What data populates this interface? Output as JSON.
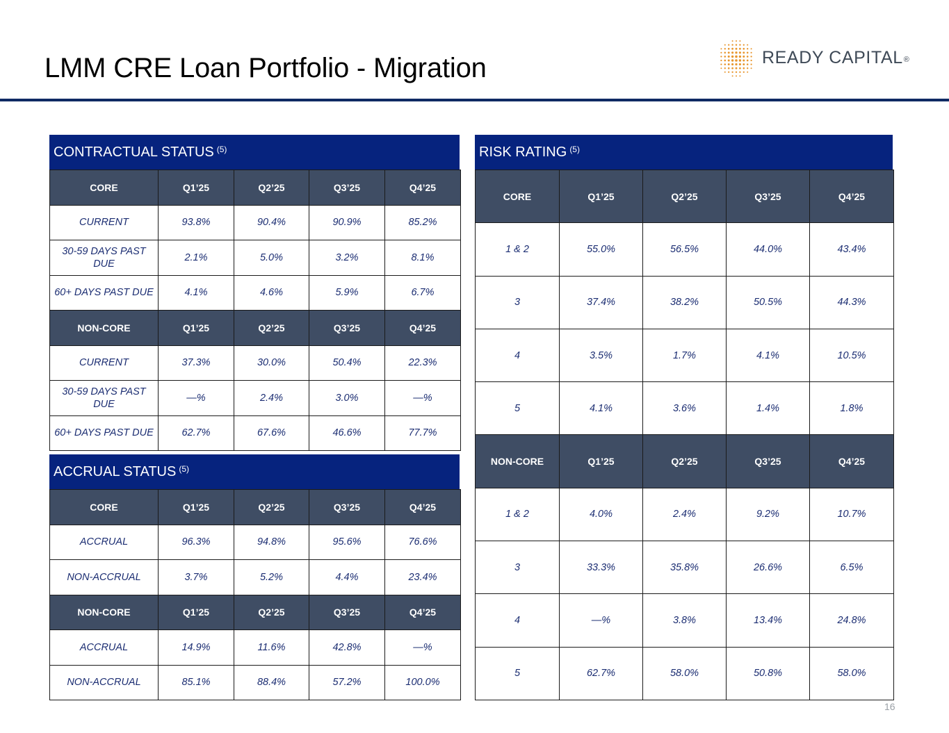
{
  "slide": {
    "title": "LMM CRE Loan Portfolio - Migration",
    "page_number": "16",
    "brand": {
      "logo_text": "READY CAPITAL",
      "logo_mark": "ready-capital-dot-logo-icon",
      "accent": "#e8962e",
      "rule_color": "#0f2a63",
      "header_color": "#06237e",
      "subheader_color": "#3f4d64"
    }
  },
  "contractual": {
    "title": "CONTRACTUAL STATUS",
    "note": "(5)",
    "core": {
      "header": [
        "CORE",
        "Q1’25",
        "Q2’25",
        "Q3’25",
        "Q4’25"
      ],
      "rows": [
        [
          "CURRENT",
          "93.8%",
          "90.4%",
          "90.9%",
          "85.2%"
        ],
        [
          "30-59 DAYS PAST DUE",
          "2.1%",
          "5.0%",
          "3.2%",
          "8.1%"
        ],
        [
          "60+ DAYS PAST DUE",
          "4.1%",
          "4.6%",
          "5.9%",
          "6.7%"
        ]
      ]
    },
    "noncore": {
      "header": [
        "NON-CORE",
        "Q1’25",
        "Q2’25",
        "Q3’25",
        "Q4’25"
      ],
      "rows": [
        [
          "CURRENT",
          "37.3%",
          "30.0%",
          "50.4%",
          "22.3%"
        ],
        [
          "30-59 DAYS PAST DUE",
          "—%",
          "2.4%",
          "3.0%",
          "—%"
        ],
        [
          "60+ DAYS PAST DUE",
          "62.7%",
          "67.6%",
          "46.6%",
          "77.7%"
        ]
      ]
    }
  },
  "accrual": {
    "title": "ACCRUAL STATUS",
    "note": "(5)",
    "core": {
      "header": [
        "CORE",
        "Q1’25",
        "Q2’25",
        "Q3’25",
        "Q4’25"
      ],
      "rows": [
        [
          "ACCRUAL",
          "96.3%",
          "94.8%",
          "95.6%",
          "76.6%"
        ],
        [
          "NON-ACCRUAL",
          "3.7%",
          "5.2%",
          "4.4%",
          "23.4%"
        ]
      ]
    },
    "noncore": {
      "header": [
        "NON-CORE",
        "Q1’25",
        "Q2’25",
        "Q3’25",
        "Q4’25"
      ],
      "rows": [
        [
          "ACCRUAL",
          "14.9%",
          "11.6%",
          "42.8%",
          "—%"
        ],
        [
          "NON-ACCRUAL",
          "85.1%",
          "88.4%",
          "57.2%",
          "100.0%"
        ]
      ]
    }
  },
  "risk": {
    "title": "RISK RATING",
    "note": "(5)",
    "core": {
      "header": [
        "CORE",
        "Q1’25",
        "Q2’25",
        "Q3’25",
        "Q4’25"
      ],
      "rows": [
        [
          "1 & 2",
          "55.0%",
          "56.5%",
          "44.0%",
          "43.4%"
        ],
        [
          "3",
          "37.4%",
          "38.2%",
          "50.5%",
          "44.3%"
        ],
        [
          "4",
          "3.5%",
          "1.7%",
          "4.1%",
          "10.5%"
        ],
        [
          "5",
          "4.1%",
          "3.6%",
          "1.4%",
          "1.8%"
        ]
      ]
    },
    "noncore": {
      "header": [
        "NON-CORE",
        "Q1’25",
        "Q2’25",
        "Q3’25",
        "Q4’25"
      ],
      "rows": [
        [
          "1 & 2",
          "4.0%",
          "2.4%",
          "9.2%",
          "10.7%"
        ],
        [
          "3",
          "33.3%",
          "35.8%",
          "26.6%",
          "6.5%"
        ],
        [
          "4",
          "—%",
          "3.8%",
          "13.4%",
          "24.8%"
        ],
        [
          "5",
          "62.7%",
          "58.0%",
          "50.8%",
          "58.0%"
        ]
      ]
    }
  }
}
